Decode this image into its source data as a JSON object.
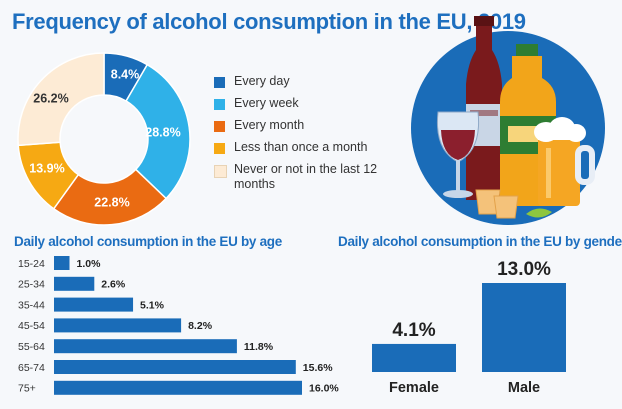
{
  "title": "Frequency of alcohol consumption in the EU, 2019",
  "colors": {
    "every_day": "#1a6cb8",
    "every_week": "#2fb1e8",
    "every_month": "#ea6b12",
    "less_than_monthly": "#f6a913",
    "never": "#fdebd5",
    "bar": "#1a6cb8",
    "title_blue": "#1e6fbf"
  },
  "age_title": "Daily alcohol consumption in the EU by age",
  "gender_title": "Daily alcohol consumption in the EU by gender",
  "illustration": {
    "name": "alcoholic-drinks-illustration"
  },
  "chart_data": [
    {
      "type": "pie",
      "title": "Frequency of alcohol consumption in the EU, 2019",
      "donut": true,
      "legend_position": "right",
      "slices": [
        {
          "label": "Every day",
          "value": 8.4,
          "display": "8.4%",
          "color": "#1a6cb8"
        },
        {
          "label": "Every week",
          "value": 28.8,
          "display": "28.8%",
          "color": "#2fb1e8"
        },
        {
          "label": "Every month",
          "value": 22.8,
          "display": "22.8%",
          "color": "#ea6b12"
        },
        {
          "label": "Less than once a month",
          "value": 13.9,
          "display": "13.9%",
          "color": "#f6a913"
        },
        {
          "label": "Never or not in the last 12 months",
          "value": 26.2,
          "display": "26.2%",
          "color": "#fdebd5"
        }
      ]
    },
    {
      "type": "bar",
      "orientation": "horizontal",
      "title": "Daily alcohol consumption in the EU by age",
      "categories": [
        "15-24",
        "25-34",
        "35-44",
        "45-54",
        "55-64",
        "65-74",
        "75+"
      ],
      "values": [
        1.0,
        2.6,
        5.1,
        8.2,
        11.8,
        15.6,
        16.0
      ],
      "value_labels": [
        "1.0%",
        "2.6%",
        "5.1%",
        "8.2%",
        "11.8%",
        "15.6%",
        "16.0%"
      ],
      "xlim": [
        0,
        16
      ],
      "grid": false
    },
    {
      "type": "bar",
      "title": "Daily alcohol consumption in the EU by gender",
      "categories": [
        "Female",
        "Male"
      ],
      "values": [
        4.1,
        13.0
      ],
      "value_labels": [
        "4.1%",
        "13.0%"
      ],
      "ylim": [
        0,
        13
      ],
      "grid": false
    }
  ]
}
